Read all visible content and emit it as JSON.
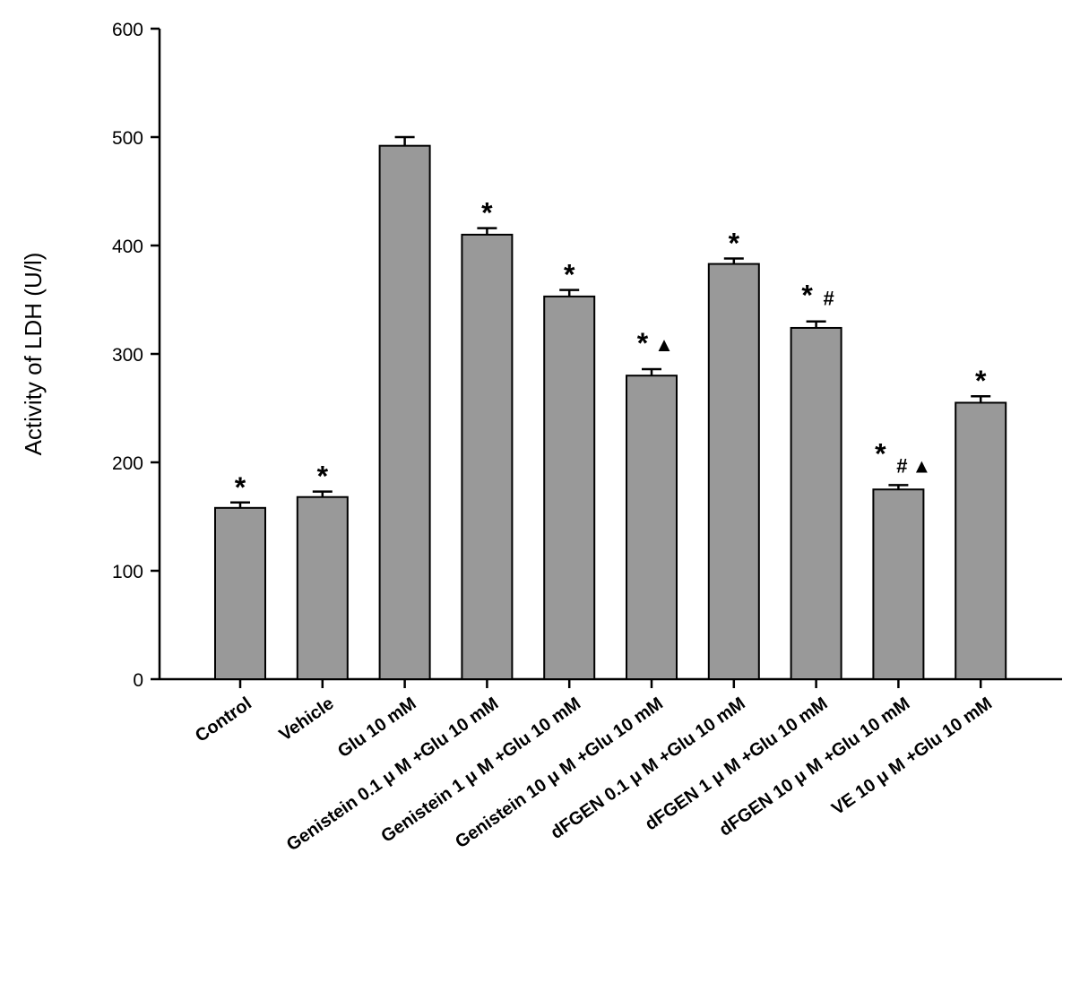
{
  "chart_data": {
    "type": "bar",
    "title": "",
    "xlabel": "",
    "ylabel": "Activity of LDH (U/l)",
    "ylim": [
      0,
      600
    ],
    "yticks": [
      0,
      100,
      200,
      300,
      400,
      500,
      600
    ],
    "grid": false,
    "legend": "none",
    "bar_color": "#999999",
    "categories": [
      "Control",
      "Vehicle",
      "Glu 10 mM",
      "Genistein 0.1 μ M +Glu 10 mM",
      "Genistein 1 μ M +Glu 10 mM",
      "Genistein 10 μ M +Glu 10 mM",
      "dFGEN 0.1 μ M +Glu 10 mM",
      "dFGEN 1 μ M +Glu 10 mM",
      "dFGEN 10 μ M +Glu 10 mM",
      "VE 10 μ M +Glu 10 mM"
    ],
    "values": [
      158,
      168,
      492,
      410,
      353,
      280,
      383,
      324,
      175,
      255
    ],
    "errors": [
      5,
      5,
      8,
      6,
      6,
      6,
      5,
      6,
      4,
      6
    ],
    "annotations": [
      [
        "*"
      ],
      [
        "*"
      ],
      [],
      [
        "*"
      ],
      [
        "*"
      ],
      [
        "*",
        "▲"
      ],
      [
        "*"
      ],
      [
        "*",
        "#"
      ],
      [
        "*",
        "#",
        "▲"
      ],
      [
        "*"
      ]
    ]
  }
}
